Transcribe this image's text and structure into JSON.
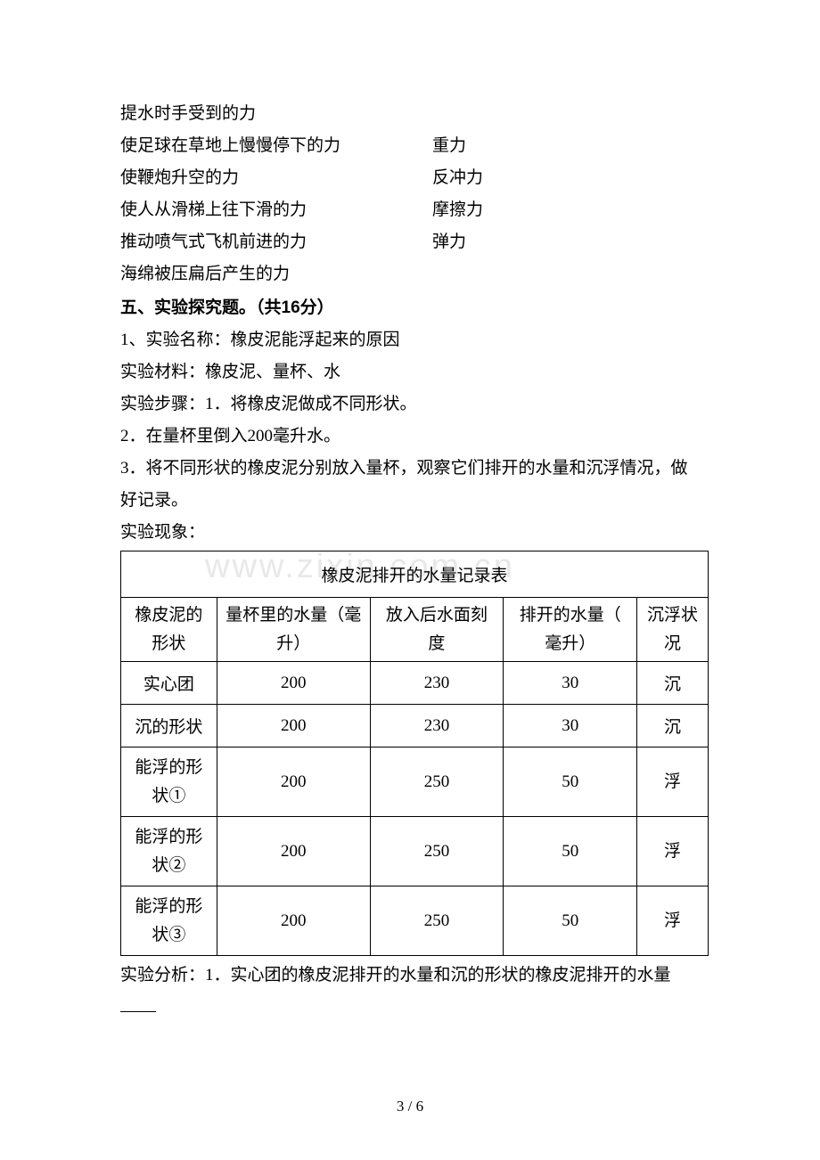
{
  "matching": {
    "line1": "提水时手受到的力",
    "rows": [
      {
        "left": "使足球在草地上慢慢停下的力",
        "right": "重力"
      },
      {
        "left": "使鞭炮升空的力",
        "right": "反冲力"
      },
      {
        "left": "使人从滑梯上往下滑的力",
        "right": "摩擦力"
      },
      {
        "left": "推动喷气式飞机前进的力",
        "right": "弹力"
      }
    ],
    "line6": "海绵被压扁后产生的力"
  },
  "sectionTitle": "五、实验探究题。（共16分）",
  "experiment": {
    "l1": "1、实验名称：橡皮泥能浮起来的原因",
    "l2": "实验材料：橡皮泥、量杯、水",
    "l3": "实验步骤：1．将橡皮泥做成不同形状。",
    "l4": "2．在量杯里倒入200毫升水。",
    "l5": "3．将不同形状的橡皮泥分别放入量杯，观察它们排开的水量和沉浮情况，做好记录。",
    "l6": "实验现象："
  },
  "watermark": "www.zixin.com.cn",
  "table": {
    "title": "橡皮泥排开的水量记录表",
    "headers": {
      "c0a": "橡皮泥的",
      "c0b": "形状",
      "c1a": "量杯里的水量（毫",
      "c1b": "升）",
      "c2a": "放入后水面刻",
      "c2b": "度",
      "c3a": "排开的水量（",
      "c3b": "毫升）",
      "c4a": "沉浮状",
      "c4b": "况"
    },
    "rows": [
      {
        "c0": "实心团",
        "c1": "200",
        "c2": "230",
        "c3": "30",
        "c4": "沉",
        "tall": false
      },
      {
        "c0": "沉的形状",
        "c1": "200",
        "c2": "230",
        "c3": "30",
        "c4": "沉",
        "tall": false
      },
      {
        "c0a": "能浮的形",
        "c0b": "状①",
        "c1": "200",
        "c2": "250",
        "c3": "50",
        "c4": "浮",
        "tall": true
      },
      {
        "c0a": "能浮的形",
        "c0b": "状②",
        "c1": "200",
        "c2": "250",
        "c3": "50",
        "c4": "浮",
        "tall": true
      },
      {
        "c0a": "能浮的形",
        "c0b": "状③",
        "c1": "200",
        "c2": "250",
        "c3": "50",
        "c4": "浮",
        "tall": true
      }
    ]
  },
  "analysis": "实验分析：1．实心团的橡皮泥排开的水量和沉的形状的橡皮泥排开的水量",
  "pageNum": "3 / 6"
}
